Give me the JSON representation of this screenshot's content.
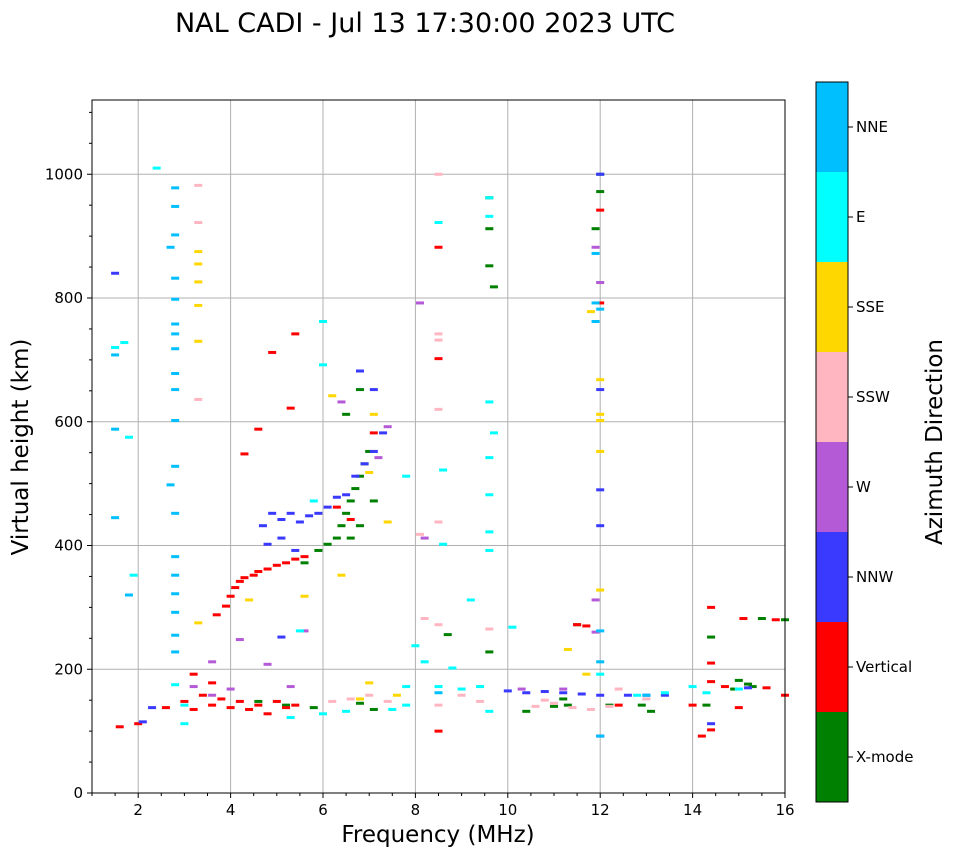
{
  "chart_data": {
    "type": "scatter",
    "title": "NAL CADI - Jul 13 17:30:00 2023 UTC",
    "xlabel": "Frequency (MHz)",
    "ylabel": "Virtual height (km)",
    "xlim": [
      1,
      16
    ],
    "ylim": [
      0,
      1120
    ],
    "x_ticks": [
      2,
      4,
      6,
      8,
      10,
      12,
      14,
      16
    ],
    "y_ticks": [
      0,
      200,
      400,
      600,
      800,
      1000
    ],
    "grid": true,
    "colorbar": {
      "title": "Azimuth Direction",
      "categories": [
        {
          "label": "X-mode",
          "color": "#008000"
        },
        {
          "label": "Vertical",
          "color": "#ff0000"
        },
        {
          "label": "NNW",
          "color": "#3a3aff"
        },
        {
          "label": "W",
          "color": "#b55ad6"
        },
        {
          "label": "SSW",
          "color": "#ffb6c1"
        },
        {
          "label": "SSE",
          "color": "#ffd700"
        },
        {
          "label": "E",
          "color": "#00ffff"
        },
        {
          "label": "NNE",
          "color": "#00bfff"
        }
      ]
    },
    "series": [
      {
        "name": "X-mode",
        "points": [
          [
            5.6,
            372
          ],
          [
            5.9,
            392
          ],
          [
            6.1,
            402
          ],
          [
            6.3,
            412
          ],
          [
            6.4,
            432
          ],
          [
            6.5,
            452
          ],
          [
            6.6,
            472
          ],
          [
            6.7,
            492
          ],
          [
            6.8,
            512
          ],
          [
            6.9,
            532
          ],
          [
            7.0,
            552
          ],
          [
            6.6,
            412
          ],
          [
            6.8,
            432
          ],
          [
            7.1,
            472
          ],
          [
            6.5,
            612
          ],
          [
            6.8,
            652
          ],
          [
            12.0,
            1000
          ],
          [
            12.0,
            972
          ],
          [
            11.9,
            912
          ],
          [
            9.6,
            962
          ],
          [
            9.6,
            912
          ],
          [
            9.6,
            852
          ],
          [
            9.7,
            818
          ],
          [
            8.7,
            256
          ],
          [
            9.6,
            228
          ],
          [
            11.5,
            272
          ],
          [
            11.2,
            152
          ],
          [
            11.3,
            142
          ],
          [
            12.9,
            142
          ],
          [
            13.1,
            132
          ],
          [
            14.3,
            142
          ],
          [
            14.4,
            252
          ],
          [
            15.0,
            182
          ],
          [
            15.3,
            172
          ],
          [
            15.5,
            282
          ],
          [
            16.0,
            280
          ],
          [
            4.6,
            148
          ],
          [
            5.2,
            142
          ],
          [
            5.8,
            138
          ],
          [
            6.8,
            145
          ],
          [
            7.1,
            135
          ],
          [
            10.4,
            132
          ],
          [
            11.0,
            140
          ],
          [
            12.2,
            142
          ],
          [
            14.9,
            168
          ],
          [
            15.2,
            176
          ]
        ]
      },
      {
        "name": "Vertical",
        "points": [
          [
            3.0,
            148
          ],
          [
            3.2,
            135
          ],
          [
            3.4,
            158
          ],
          [
            3.6,
            142
          ],
          [
            3.8,
            152
          ],
          [
            4.0,
            138
          ],
          [
            4.2,
            148
          ],
          [
            4.4,
            135
          ],
          [
            4.6,
            142
          ],
          [
            4.8,
            128
          ],
          [
            5.0,
            148
          ],
          [
            5.2,
            138
          ],
          [
            5.4,
            142
          ],
          [
            3.2,
            192
          ],
          [
            3.6,
            178
          ],
          [
            3.7,
            288
          ],
          [
            3.9,
            302
          ],
          [
            4.0,
            318
          ],
          [
            4.1,
            332
          ],
          [
            4.2,
            342
          ],
          [
            4.3,
            348
          ],
          [
            4.5,
            352
          ],
          [
            4.6,
            358
          ],
          [
            4.8,
            362
          ],
          [
            5.0,
            368
          ],
          [
            5.2,
            372
          ],
          [
            5.4,
            378
          ],
          [
            5.6,
            382
          ],
          [
            4.3,
            548
          ],
          [
            4.6,
            588
          ],
          [
            5.3,
            622
          ],
          [
            5.4,
            742
          ],
          [
            4.9,
            712
          ],
          [
            8.5,
            882
          ],
          [
            8.5,
            702
          ],
          [
            8.5,
            100
          ],
          [
            12.0,
            942
          ],
          [
            12.0,
            792
          ],
          [
            11.5,
            272
          ],
          [
            11.7,
            270
          ],
          [
            12.4,
            142
          ],
          [
            14.0,
            142
          ],
          [
            14.2,
            92
          ],
          [
            14.4,
            102
          ],
          [
            14.4,
            180
          ],
          [
            14.4,
            210
          ],
          [
            14.4,
            300
          ],
          [
            14.7,
            172
          ],
          [
            15.0,
            138
          ],
          [
            15.1,
            282
          ],
          [
            15.6,
            170
          ],
          [
            15.8,
            280
          ],
          [
            16.0,
            158
          ],
          [
            6.3,
            462
          ],
          [
            6.6,
            442
          ],
          [
            7.1,
            582
          ],
          [
            1.6,
            107
          ],
          [
            2.0,
            112
          ],
          [
            2.6,
            138
          ]
        ]
      },
      {
        "name": "NNW",
        "points": [
          [
            4.7,
            432
          ],
          [
            4.9,
            452
          ],
          [
            5.1,
            442
          ],
          [
            5.3,
            452
          ],
          [
            5.5,
            438
          ],
          [
            5.7,
            448
          ],
          [
            5.9,
            452
          ],
          [
            6.1,
            462
          ],
          [
            6.3,
            478
          ],
          [
            6.5,
            482
          ],
          [
            6.7,
            512
          ],
          [
            6.9,
            532
          ],
          [
            7.1,
            552
          ],
          [
            7.3,
            582
          ],
          [
            6.8,
            682
          ],
          [
            7.1,
            652
          ],
          [
            4.8,
            402
          ],
          [
            5.1,
            412
          ],
          [
            5.4,
            392
          ],
          [
            2.3,
            138
          ],
          [
            2.1,
            115
          ],
          [
            5.1,
            252
          ],
          [
            10.0,
            165
          ],
          [
            10.4,
            162
          ],
          [
            10.8,
            164
          ],
          [
            11.2,
            162
          ],
          [
            11.6,
            160
          ],
          [
            12.0,
            158
          ],
          [
            12.6,
            158
          ],
          [
            13.0,
            158
          ],
          [
            13.4,
            158
          ],
          [
            12.0,
            490
          ],
          [
            12.0,
            432
          ],
          [
            12.0,
            92
          ],
          [
            14.4,
            112
          ],
          [
            1.5,
            840
          ],
          [
            12.0,
            1000
          ],
          [
            12.0,
            652
          ],
          [
            15.2,
            170
          ]
        ]
      },
      {
        "name": "W",
        "points": [
          [
            3.2,
            172
          ],
          [
            3.6,
            212
          ],
          [
            4.2,
            248
          ],
          [
            5.3,
            172
          ],
          [
            4.8,
            208
          ],
          [
            4.0,
            168
          ],
          [
            6.4,
            632
          ],
          [
            7.4,
            592
          ],
          [
            7.2,
            542
          ],
          [
            8.1,
            792
          ],
          [
            8.2,
            412
          ],
          [
            10.3,
            168
          ],
          [
            11.2,
            168
          ],
          [
            11.9,
            260
          ],
          [
            11.9,
            312
          ],
          [
            11.9,
            882
          ],
          [
            12.0,
            825
          ],
          [
            5.6,
            262
          ],
          [
            3.6,
            158
          ]
        ]
      },
      {
        "name": "SSW",
        "points": [
          [
            8.2,
            282
          ],
          [
            8.5,
            272
          ],
          [
            8.5,
            142
          ],
          [
            9.0,
            158
          ],
          [
            9.4,
            148
          ],
          [
            9.6,
            265
          ],
          [
            10.6,
            140
          ],
          [
            10.8,
            150
          ],
          [
            11.0,
            145
          ],
          [
            11.4,
            138
          ],
          [
            11.8,
            135
          ],
          [
            12.2,
            140
          ],
          [
            8.5,
            1000
          ],
          [
            8.5,
            742
          ],
          [
            8.5,
            732
          ],
          [
            8.5,
            620
          ],
          [
            8.5,
            438
          ],
          [
            3.3,
            982
          ],
          [
            3.3,
            922
          ],
          [
            3.3,
            636
          ],
          [
            6.2,
            148
          ],
          [
            6.6,
            152
          ],
          [
            7.0,
            158
          ],
          [
            7.4,
            148
          ],
          [
            12.4,
            168
          ],
          [
            13.0,
            152
          ],
          [
            8.1,
            418
          ]
        ]
      },
      {
        "name": "SSE",
        "points": [
          [
            3.3,
            875
          ],
          [
            3.3,
            855
          ],
          [
            3.3,
            826
          ],
          [
            3.3,
            788
          ],
          [
            3.3,
            730
          ],
          [
            3.3,
            275
          ],
          [
            6.2,
            642
          ],
          [
            7.1,
            612
          ],
          [
            7.0,
            178
          ],
          [
            7.6,
            158
          ],
          [
            6.8,
            152
          ],
          [
            12.0,
            668
          ],
          [
            12.0,
            612
          ],
          [
            12.0,
            552
          ],
          [
            12.0,
            602
          ],
          [
            12.0,
            328
          ],
          [
            11.7,
            192
          ],
          [
            11.3,
            232
          ],
          [
            11.8,
            778
          ],
          [
            7.4,
            438
          ],
          [
            6.4,
            352
          ],
          [
            7.0,
            518
          ],
          [
            4.4,
            312
          ],
          [
            5.6,
            318
          ]
        ]
      },
      {
        "name": "E",
        "points": [
          [
            8.5,
            922
          ],
          [
            8.6,
            522
          ],
          [
            8.6,
            402
          ],
          [
            8.2,
            212
          ],
          [
            8.5,
            172
          ],
          [
            8.8,
            202
          ],
          [
            9.0,
            168
          ],
          [
            9.4,
            172
          ],
          [
            9.6,
            962
          ],
          [
            9.6,
            932
          ],
          [
            9.6,
            632
          ],
          [
            9.6,
            542
          ],
          [
            9.7,
            582
          ],
          [
            9.6,
            482
          ],
          [
            9.6,
            422
          ],
          [
            9.6,
            392
          ],
          [
            9.2,
            312
          ],
          [
            9.6,
            132
          ],
          [
            10.1,
            268
          ],
          [
            12.0,
            192
          ],
          [
            12.8,
            158
          ],
          [
            13.4,
            162
          ],
          [
            14.0,
            172
          ],
          [
            14.3,
            162
          ],
          [
            15.0,
            168
          ],
          [
            7.8,
            512
          ],
          [
            7.8,
            172
          ],
          [
            8.0,
            238
          ],
          [
            6.0,
            692
          ],
          [
            6.0,
            762
          ],
          [
            5.8,
            472
          ],
          [
            5.5,
            262
          ],
          [
            5.3,
            122
          ],
          [
            6.0,
            128
          ],
          [
            6.5,
            132
          ],
          [
            7.5,
            135
          ],
          [
            7.8,
            142
          ],
          [
            2.4,
            1010
          ],
          [
            1.5,
            720
          ],
          [
            1.7,
            728
          ],
          [
            1.8,
            575
          ],
          [
            1.9,
            352
          ],
          [
            3.0,
            142
          ],
          [
            2.8,
            175
          ],
          [
            3.0,
            112
          ]
        ]
      },
      {
        "name": "NNE",
        "points": [
          [
            2.8,
            978
          ],
          [
            2.8,
            948
          ],
          [
            2.8,
            902
          ],
          [
            2.8,
            832
          ],
          [
            2.8,
            798
          ],
          [
            2.8,
            758
          ],
          [
            2.8,
            742
          ],
          [
            2.8,
            718
          ],
          [
            2.8,
            678
          ],
          [
            2.8,
            652
          ],
          [
            2.8,
            602
          ],
          [
            2.8,
            528
          ],
          [
            2.8,
            452
          ],
          [
            2.8,
            382
          ],
          [
            2.8,
            352
          ],
          [
            2.8,
            322
          ],
          [
            2.8,
            292
          ],
          [
            2.8,
            255
          ],
          [
            2.8,
            228
          ],
          [
            2.7,
            498
          ],
          [
            2.7,
            882
          ],
          [
            1.5,
            708
          ],
          [
            1.5,
            588
          ],
          [
            1.5,
            445
          ],
          [
            1.8,
            320
          ],
          [
            12.0,
            782
          ],
          [
            12.0,
            262
          ],
          [
            12.0,
            212
          ],
          [
            11.9,
            872
          ],
          [
            11.9,
            792
          ],
          [
            11.9,
            762
          ],
          [
            12.0,
            92
          ],
          [
            13.0,
            158
          ],
          [
            8.5,
            162
          ]
        ]
      }
    ]
  }
}
